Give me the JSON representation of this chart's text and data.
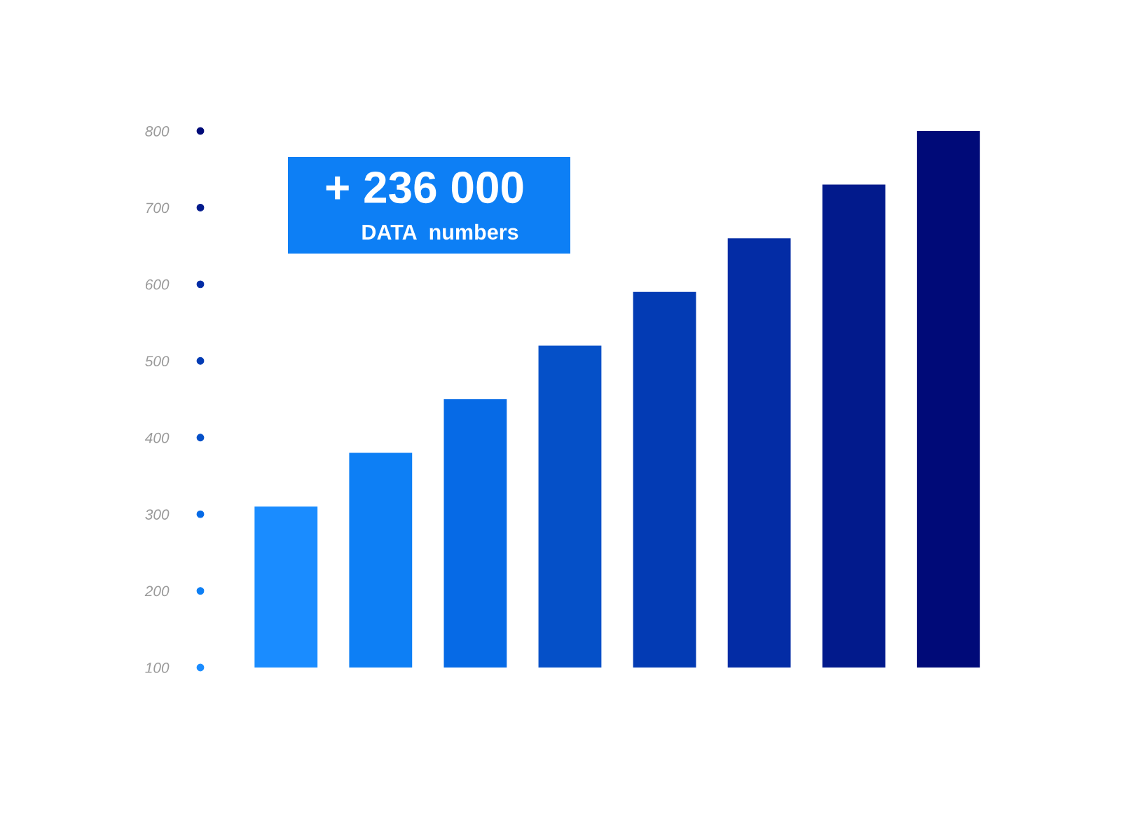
{
  "chart_data": {
    "type": "bar",
    "categories": [
      null,
      null,
      null,
      null,
      null,
      null,
      null,
      null
    ],
    "values": [
      310,
      380,
      450,
      520,
      590,
      660,
      730,
      800
    ],
    "colors": [
      "#1a8cff",
      "#0d7ff5",
      "#066ae6",
      "#0550c8",
      "#033bb4",
      "#032ca5",
      "#021a8c",
      "#000a78"
    ],
    "ylim": [
      100,
      800
    ],
    "yticks": [
      100,
      200,
      300,
      400,
      500,
      600,
      700,
      800
    ],
    "tick_labels": "y",
    "annotations": [
      "+ 236 000",
      "DATA  numbers"
    ]
  }
}
